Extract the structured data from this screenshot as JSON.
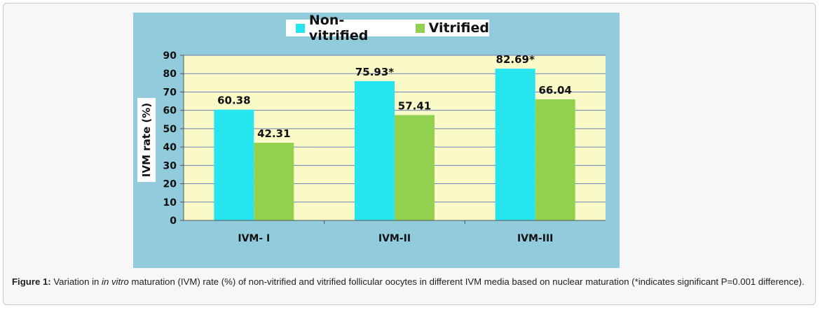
{
  "chart_data": {
    "type": "bar",
    "categories": [
      "IVM- I",
      "IVM-II",
      "IVM-III"
    ],
    "series": [
      {
        "name": "Non-vitrified",
        "values": [
          60.38,
          75.93,
          82.69
        ],
        "labels": [
          "60.38",
          "75.93*",
          "82.69*"
        ],
        "color": "#27e5ef"
      },
      {
        "name": "Vitrified",
        "values": [
          42.31,
          57.41,
          66.04
        ],
        "labels": [
          "42.31",
          "57.41",
          "66.04"
        ],
        "color": "#92d050"
      }
    ],
    "ylabel": "IVM rate (%)",
    "xlabel": "",
    "ylim": [
      0,
      90
    ],
    "yticks": [
      0,
      10,
      20,
      30,
      40,
      50,
      60,
      70,
      80,
      90
    ],
    "grid": true,
    "legend_position": "top-center",
    "plot_background": "#fafac8",
    "chart_background": "#92ccdc"
  },
  "caption": {
    "label": "Figure 1:",
    "pre": " Variation in ",
    "italic": "in vitro",
    "post": " maturation (IVM) rate (%) of non-vitrified and vitrified follicular oocytes in different IVM media based on nuclear maturation (*indicates significant P=0.001 difference)."
  }
}
